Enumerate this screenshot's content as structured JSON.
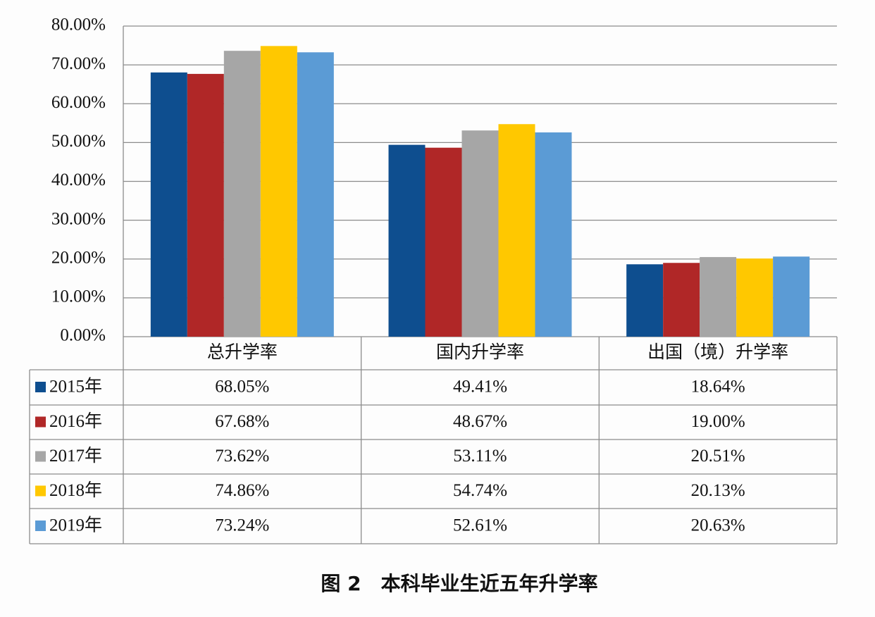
{
  "chart_data": {
    "type": "bar",
    "title": "图 2　本科毕业生近五年升学率",
    "categories": [
      "总升学率",
      "国内升学率",
      "出国（境）升学率"
    ],
    "series": [
      {
        "name": "2015年",
        "color": "#0e4e8f",
        "values": [
          68.05,
          49.41,
          18.64
        ],
        "value_labels": [
          "68.05%",
          "49.41%",
          "18.64%"
        ]
      },
      {
        "name": "2016年",
        "color": "#b02727",
        "values": [
          67.68,
          48.67,
          19.0
        ],
        "value_labels": [
          "67.68%",
          "48.67%",
          "19.00%"
        ]
      },
      {
        "name": "2017年",
        "color": "#a6a6a6",
        "values": [
          73.62,
          53.11,
          20.51
        ],
        "value_labels": [
          "73.62%",
          "53.11%",
          "20.51%"
        ]
      },
      {
        "name": "2018年",
        "color": "#ffc800",
        "values": [
          74.86,
          54.74,
          20.13
        ],
        "value_labels": [
          "74.86%",
          "54.74%",
          "20.13%"
        ]
      },
      {
        "name": "2019年",
        "color": "#5b9bd5",
        "values": [
          73.24,
          52.61,
          20.63
        ],
        "value_labels": [
          "73.24%",
          "52.61%",
          "20.63%"
        ]
      }
    ],
    "ylim": [
      0,
      80
    ],
    "yticks": [
      {
        "value": 0,
        "label": "0.00%"
      },
      {
        "value": 10,
        "label": "10.00%"
      },
      {
        "value": 20,
        "label": "20.00%"
      },
      {
        "value": 30,
        "label": "30.00%"
      },
      {
        "value": 40,
        "label": "40.00%"
      },
      {
        "value": 50,
        "label": "50.00%"
      },
      {
        "value": 60,
        "label": "60.00%"
      },
      {
        "value": 70,
        "label": "70.00%"
      },
      {
        "value": 80,
        "label": "80.00%"
      }
    ],
    "grid": true
  }
}
